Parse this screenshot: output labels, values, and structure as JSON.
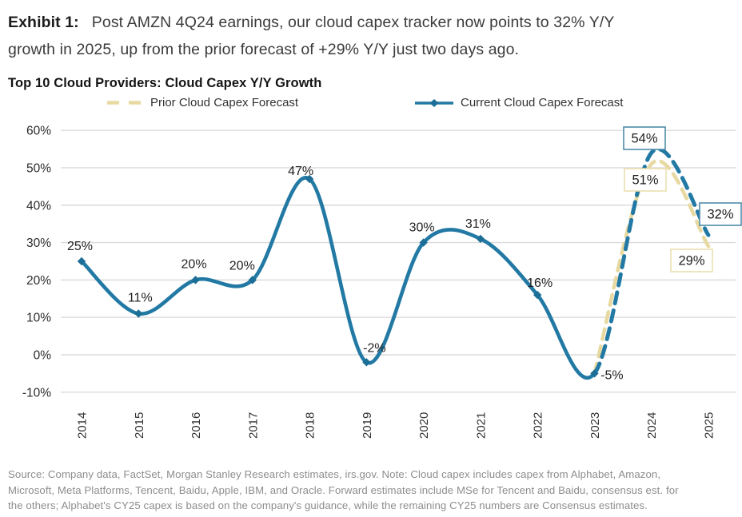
{
  "header": {
    "exhibit_label": "Exhibit 1:",
    "line1": "Post AMZN 4Q24 earnings, our cloud capex tracker now points to 32% Y/Y",
    "line2": "growth in 2025, up from the prior forecast of +29% Y/Y just two days ago."
  },
  "chart": {
    "title": "Top 10 Cloud Providers: Cloud Capex Y/Y Growth"
  },
  "legend": {
    "prior_label": "Prior Cloud Capex Forecast",
    "current_label": "Current Cloud Capex Forecast"
  },
  "colors": {
    "current_line": "#2279A4",
    "current_marker": "#1D6E97",
    "prior_line": "#E7D9A1",
    "grid": "#DBDBDB",
    "box_current_border": "#4E8CA9",
    "box_prior_border": "#EADFB0",
    "label_text": "#1F1F1F",
    "axis_text": "#2B2B2B"
  },
  "chart_data": {
    "type": "line",
    "title": "Top 10 Cloud Providers: Cloud Capex Y/Y Growth",
    "categories": [
      "2014",
      "2015",
      "2016",
      "2017",
      "2018",
      "2019",
      "2020",
      "2021",
      "2022",
      "2023",
      "2024",
      "2025"
    ],
    "series": [
      {
        "name": "Current Cloud Capex Forecast",
        "color": "#2279A4",
        "values": [
          25,
          11,
          20,
          20,
          47,
          -2,
          30,
          31,
          16,
          -5,
          54,
          32
        ],
        "style": "solid with diamond markers 2014-2023, dashed forecast 2023-2025",
        "boxed_label_indices": [
          10,
          11
        ]
      },
      {
        "name": "Prior Cloud Capex Forecast",
        "color": "#E7D9A1",
        "values": [
          null,
          null,
          null,
          null,
          null,
          null,
          null,
          null,
          null,
          -5,
          51,
          29
        ],
        "style": "dashed forecast 2023-2025",
        "boxed_label_indices": [
          10,
          11
        ]
      }
    ],
    "xlabel": "",
    "ylabel": "",
    "ylim": [
      -10,
      60
    ],
    "ytick_step": 10,
    "yticks": [
      "60%",
      "50%",
      "40%",
      "30%",
      "20%",
      "10%",
      "0%",
      "-10%"
    ],
    "grid": "horizontal",
    "legend_position": "top",
    "forecast_start_category": "2023"
  },
  "source_note": {
    "line1": "Source: Company data, FactSet, Morgan Stanley Research estimates, irs.gov. Note: Cloud capex includes capex from Alphabet, Amazon,",
    "line2": "Microsoft, Meta Platforms, Tencent, Baidu, Apple, IBM, and Oracle. Forward estimates include MSe for Tencent and Baidu, consensus est. for",
    "line3": "the others; Alphabet's CY25 capex is based on the company's guidance, while the remaining CY25 numbers are Consensus estimates."
  }
}
